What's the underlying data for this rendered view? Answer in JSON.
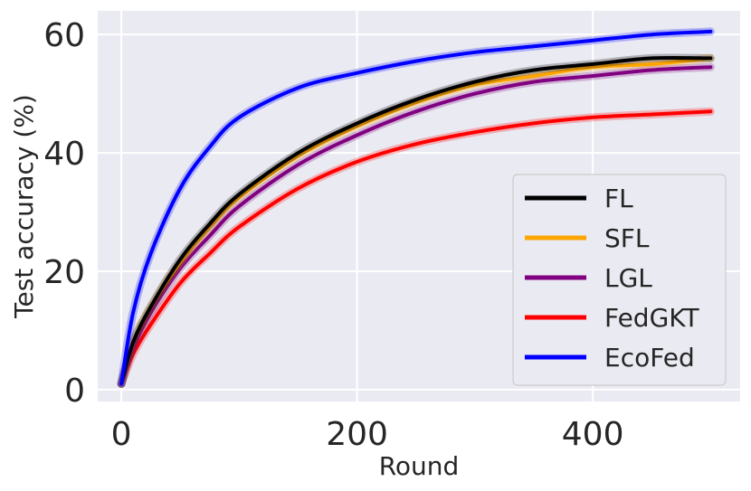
{
  "chart_data": {
    "type": "line",
    "title": "",
    "xlabel": "Round",
    "ylabel": "Test accuracy (%)",
    "xlim": [
      -20,
      525
    ],
    "ylim": [
      -2,
      64
    ],
    "xticks": [
      0,
      200,
      400
    ],
    "yticks": [
      0,
      20,
      40,
      60
    ],
    "grid": true,
    "legend_position": "lower-right",
    "x": [
      0,
      10,
      25,
      50,
      75,
      100,
      150,
      200,
      250,
      300,
      350,
      400,
      450,
      500
    ],
    "series": [
      {
        "name": "FL",
        "color": "#000000",
        "values": [
          1,
          8,
          14,
          22,
          28,
          33,
          40,
          45,
          49,
          52,
          54,
          55,
          56,
          56
        ]
      },
      {
        "name": "SFL",
        "color": "#FFA500",
        "values": [
          1,
          8,
          14,
          21.5,
          27.5,
          32.5,
          39.5,
          44.5,
          48.5,
          51.5,
          53,
          54.5,
          55,
          56
        ]
      },
      {
        "name": "LGL",
        "color": "#800080",
        "values": [
          1,
          7,
          13,
          20.5,
          26,
          31,
          38,
          43,
          47,
          50,
          52,
          53,
          54,
          54.5
        ]
      },
      {
        "name": "FedGKT",
        "color": "#FF0000",
        "values": [
          1,
          6,
          11,
          18,
          23,
          27.5,
          34,
          38.5,
          41.5,
          43.5,
          45,
          46,
          46.5,
          47
        ]
      },
      {
        "name": "EcoFed",
        "color": "#0000FF",
        "values": [
          1,
          13,
          23,
          34,
          41,
          46,
          51,
          53.5,
          55.5,
          57,
          58,
          59,
          60,
          60.5
        ]
      }
    ]
  }
}
